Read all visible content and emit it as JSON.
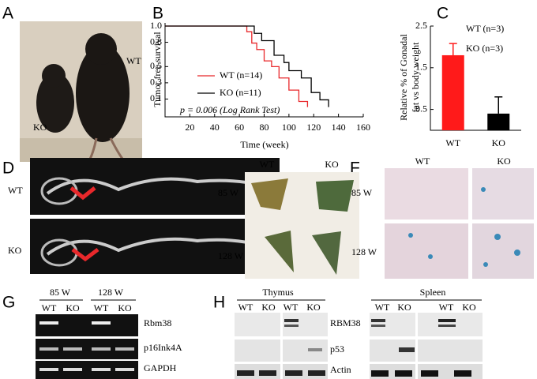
{
  "panels": [
    "A",
    "B",
    "C",
    "D",
    "E",
    "F",
    "G",
    "H"
  ],
  "panel_a": {
    "labels": [
      "WT",
      "KO"
    ]
  },
  "chart_data": [
    {
      "type": "line",
      "step": true,
      "ylabel": "Tumor free survival",
      "xlabel": "Time (week)",
      "annotation": "p = 0.006 (Log Rank Test)",
      "xlim": [
        0,
        160
      ],
      "xticks": [
        20,
        40,
        60,
        80,
        100,
        120,
        140,
        160
      ],
      "ylim": [
        -0.12,
        1.0
      ],
      "yticks": [
        {
          "value": 1.0,
          "label": "1.0"
        },
        0.8,
        0.5,
        0.3,
        0.1
      ],
      "series": [
        {
          "name": "WT (n=14)",
          "color": "#e8282b",
          "x": [
            0,
            66,
            70,
            74,
            80,
            86,
            92,
            100,
            108,
            115
          ],
          "values": [
            1.0,
            0.93,
            0.79,
            0.71,
            0.57,
            0.5,
            0.36,
            0.21,
            0.07,
            0
          ]
        },
        {
          "name": "KO (n=11)",
          "color": "#000000",
          "x": [
            0,
            72,
            78,
            88,
            96,
            100,
            110,
            118,
            125,
            132
          ],
          "values": [
            1.0,
            0.91,
            0.82,
            0.64,
            0.55,
            0.45,
            0.36,
            0.18,
            0.09,
            0
          ]
        }
      ]
    },
    {
      "type": "bar",
      "ylabel": [
        "Relative % of Gonadal",
        "fat vs body weight"
      ],
      "categories": [
        "WT",
        "KO"
      ],
      "values": [
        1.8,
        0.4
      ],
      "errors": [
        0.28,
        0.4
      ],
      "colors": [
        "#ff1a1a",
        "#000000"
      ],
      "legend": [
        "WT (n=3)",
        "KO (n=3)"
      ],
      "ylim": [
        0,
        2.5
      ],
      "yticks": [
        0.5,
        1.5,
        2.5
      ]
    }
  ],
  "panel_d": {
    "rows": [
      "WT",
      "KO"
    ]
  },
  "panel_e": {
    "columns": [
      "WT",
      "KO"
    ],
    "rows": [
      "85 W",
      "128 W"
    ]
  },
  "panel_f": {
    "columns": [
      "WT",
      "KO"
    ],
    "rows": [
      "85 W",
      "128 W"
    ]
  },
  "panel_g": {
    "groups": [
      "85 W",
      "128 W"
    ],
    "columns": [
      "WT",
      "KO",
      "WT",
      "KO"
    ],
    "bands": [
      "Rbm38",
      "p16Ink4A",
      "GAPDH"
    ]
  },
  "panel_h": {
    "groups": [
      "Thymus",
      "Spleen"
    ],
    "columns": [
      "WT",
      "KO",
      "WT",
      "KO",
      "WT",
      "KO",
      "WT",
      "KO"
    ],
    "bands": [
      "RBM38",
      "p53",
      "Actin"
    ]
  }
}
